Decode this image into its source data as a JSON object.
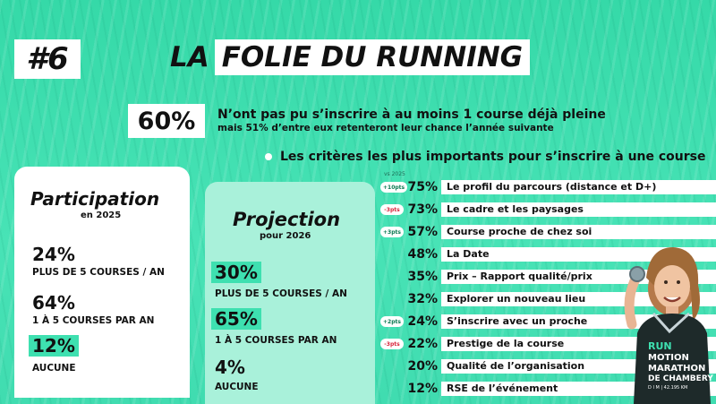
{
  "badge": "#6",
  "title": {
    "word1": "LA",
    "word2": "FOLIE DU RUNNING"
  },
  "headline": {
    "percent": "60%",
    "line1": "N’ont pas pu s’inscrire à au moins 1 course déjà pleine",
    "line2": "mais 51% d’entre eux retenteront leur chance l’année suivante"
  },
  "criteria": {
    "title": "Les critères les plus importants pour s’inscrire à une course",
    "year_note": "vs 2025",
    "items": [
      {
        "change": "+10pts",
        "dir": "up",
        "percent": "75%",
        "label": "Le profil du parcours (distance et D+)"
      },
      {
        "change": "-3pts",
        "dir": "down",
        "percent": "73%",
        "label": "Le cadre et les paysages"
      },
      {
        "change": "+3pts",
        "dir": "up",
        "percent": "57%",
        "label": "Course proche de chez soi"
      },
      {
        "change": "",
        "dir": "",
        "percent": "48%",
        "label": "La Date"
      },
      {
        "change": "",
        "dir": "",
        "percent": "35%",
        "label": "Prix – Rapport qualité/prix"
      },
      {
        "change": "",
        "dir": "",
        "percent": "32%",
        "label": "Explorer un nouveau lieu"
      },
      {
        "change": "+2pts",
        "dir": "up",
        "percent": "24%",
        "label": "S’inscrire avec un proche"
      },
      {
        "change": "-3pts",
        "dir": "down",
        "percent": "22%",
        "label": "Prestige de la course"
      },
      {
        "change": "",
        "dir": "",
        "percent": "20%",
        "label": "Qualité de l’organisation"
      },
      {
        "change": "",
        "dir": "",
        "percent": "12%",
        "label": "RSE de l’événement"
      }
    ]
  },
  "participation": {
    "title": "Participation",
    "subtitle": "en 2025",
    "stats": [
      {
        "value": "24%",
        "label": "PLUS DE 5 COURSES / AN"
      },
      {
        "value": "64%",
        "label": "1 À 5 COURSES PAR AN"
      },
      {
        "value": "12%",
        "label": "AUCUNE"
      }
    ]
  },
  "projection": {
    "title": "Projection",
    "subtitle": "pour 2026",
    "stats": [
      {
        "value": "30%",
        "label": "PLUS DE 5 COURSES / AN"
      },
      {
        "value": "65%",
        "label": "1 À 5 COURSES PAR AN"
      },
      {
        "value": "4%",
        "label": "AUCUNE"
      }
    ]
  },
  "runner_shirt": {
    "l1": "RUN",
    "l2": "MOTION",
    "l3": "MARATHON",
    "l4": "DE CHAMBERY",
    "l5": "D I M | 42.195 KM"
  },
  "colors": {
    "accent": "#3ee0b0",
    "panel_light": "#a9f1da",
    "up": "#0a7a52",
    "down": "#d8243a"
  }
}
